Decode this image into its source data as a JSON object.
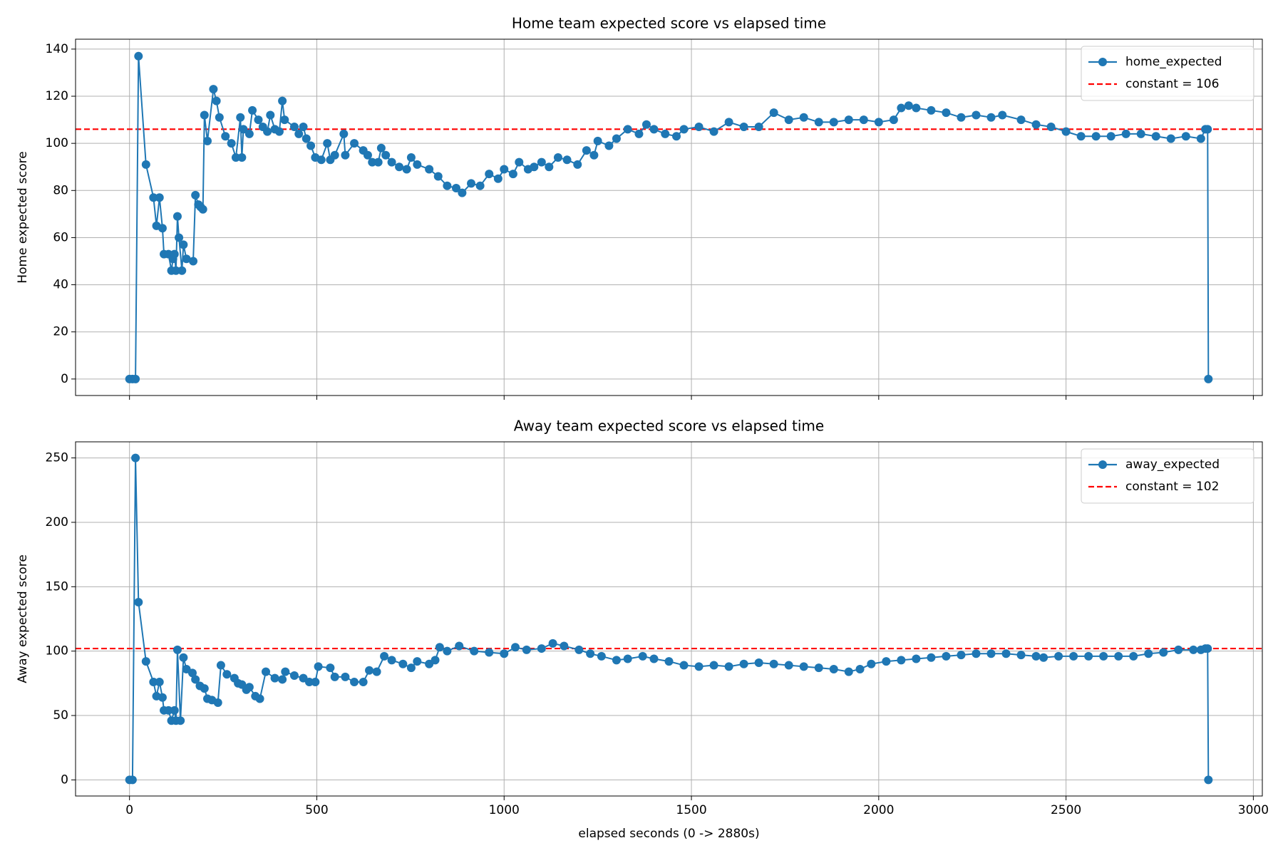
{
  "chart_data": [
    {
      "type": "line",
      "title": "Home team expected score vs elapsed time",
      "ylabel": "Home expected score",
      "xlim": [
        -144,
        3024
      ],
      "xticks": [
        0,
        500,
        1000,
        1500,
        2000,
        2500,
        3000
      ],
      "show_xtick_labels": false,
      "ylim": [
        -7,
        144.2
      ],
      "yticks": [
        0,
        20,
        40,
        60,
        80,
        100,
        120,
        140
      ],
      "grid": true,
      "legend": "upper right",
      "x": [
        0,
        8,
        16,
        24,
        44,
        64,
        72,
        80,
        88,
        92,
        104,
        112,
        116,
        120,
        124,
        128,
        132,
        140,
        144,
        152,
        170,
        176,
        184,
        190,
        196,
        200,
        208,
        224,
        232,
        240,
        256,
        272,
        284,
        296,
        300,
        304,
        320,
        328,
        344,
        356,
        368,
        376,
        388,
        400,
        408,
        414,
        440,
        452,
        464,
        472,
        484,
        496,
        512,
        528,
        536,
        548,
        572,
        576,
        600,
        624,
        636,
        648,
        664,
        672,
        684,
        700,
        720,
        740,
        752,
        768,
        800,
        824,
        848,
        872,
        888,
        912,
        936,
        960,
        984,
        1000,
        1024,
        1040,
        1064,
        1080,
        1100,
        1120,
        1144,
        1168,
        1196,
        1220,
        1240,
        1250,
        1280,
        1300,
        1330,
        1360,
        1380,
        1400,
        1430,
        1460,
        1480,
        1520,
        1560,
        1600,
        1640,
        1680,
        1720,
        1760,
        1800,
        1840,
        1880,
        1920,
        1960,
        2000,
        2040,
        2060,
        2080,
        2100,
        2140,
        2180,
        2220,
        2260,
        2300,
        2330,
        2380,
        2420,
        2460,
        2500,
        2540,
        2580,
        2620,
        2660,
        2700,
        2740,
        2780,
        2820,
        2860,
        2872,
        2878,
        2880
      ],
      "series": [
        {
          "name": "home_expected",
          "color": "#1f77b4",
          "values": [
            0,
            0,
            0,
            137,
            91,
            77,
            65,
            77,
            64,
            53,
            53,
            46,
            51,
            53,
            46,
            69,
            60,
            46,
            57,
            51,
            50,
            78,
            74,
            73,
            72,
            112,
            101,
            123,
            118,
            111,
            103,
            100,
            94,
            111,
            94,
            106,
            104,
            114,
            110,
            107,
            105,
            112,
            106,
            105,
            118,
            110,
            107,
            104,
            107,
            102,
            99,
            94,
            93,
            100,
            93,
            95,
            104,
            95,
            100,
            97,
            95,
            92,
            92,
            98,
            95,
            92,
            90,
            89,
            94,
            91,
            89,
            86,
            82,
            81,
            79,
            83,
            82,
            87,
            85,
            89,
            87,
            92,
            89,
            90,
            92,
            90,
            94,
            93,
            91,
            97,
            95,
            101,
            99,
            102,
            106,
            104,
            108,
            106,
            104,
            103,
            106,
            107,
            105,
            109,
            107,
            107,
            113,
            110,
            111,
            109,
            109,
            110,
            110,
            109,
            110,
            115,
            116,
            115,
            114,
            113,
            111,
            112,
            111,
            112,
            110,
            108,
            107,
            105,
            103,
            103,
            103,
            104,
            104,
            103,
            102,
            103,
            102,
            106,
            106,
            0
          ]
        }
      ],
      "hlines": [
        {
          "name": "constant = 106",
          "value": 106,
          "color": "#ff0000"
        }
      ]
    },
    {
      "type": "line",
      "title": "Away team expected score vs elapsed time",
      "ylabel": "Away expected score",
      "xlabel": "elapsed seconds (0 -> 2880s)",
      "xlim": [
        -144,
        3024
      ],
      "xticks": [
        0,
        500,
        1000,
        1500,
        2000,
        2500,
        3000
      ],
      "show_xtick_labels": true,
      "ylim": [
        -12.5,
        262.5
      ],
      "yticks": [
        0,
        50,
        100,
        150,
        200,
        250
      ],
      "grid": true,
      "legend": "upper right",
      "x": [
        0,
        8,
        16,
        24,
        44,
        64,
        72,
        80,
        88,
        92,
        104,
        112,
        120,
        124,
        128,
        136,
        144,
        152,
        168,
        176,
        188,
        200,
        208,
        220,
        236,
        244,
        260,
        280,
        290,
        300,
        312,
        320,
        336,
        348,
        364,
        388,
        408,
        416,
        440,
        464,
        480,
        496,
        504,
        536,
        548,
        576,
        600,
        624,
        640,
        660,
        680,
        700,
        730,
        752,
        768,
        800,
        816,
        828,
        848,
        880,
        920,
        960,
        1000,
        1030,
        1060,
        1100,
        1130,
        1160,
        1200,
        1230,
        1260,
        1300,
        1330,
        1370,
        1400,
        1440,
        1480,
        1520,
        1560,
        1600,
        1640,
        1680,
        1720,
        1760,
        1800,
        1840,
        1880,
        1920,
        1950,
        1980,
        2020,
        2060,
        2100,
        2140,
        2180,
        2220,
        2260,
        2300,
        2340,
        2380,
        2420,
        2440,
        2480,
        2520,
        2560,
        2600,
        2640,
        2680,
        2720,
        2760,
        2800,
        2840,
        2860,
        2872,
        2878,
        2880
      ],
      "series": [
        {
          "name": "away_expected",
          "color": "#1f77b4",
          "values": [
            0,
            0,
            250,
            138,
            92,
            76,
            65,
            76,
            64,
            54,
            54,
            46,
            54,
            46,
            101,
            46,
            95,
            86,
            83,
            78,
            73,
            71,
            63,
            62,
            60,
            89,
            82,
            79,
            75,
            74,
            70,
            72,
            65,
            63,
            84,
            79,
            78,
            84,
            81,
            79,
            76,
            76,
            88,
            87,
            80,
            80,
            76,
            76,
            85,
            84,
            96,
            93,
            90,
            87,
            92,
            90,
            93,
            103,
            100,
            104,
            100,
            99,
            98,
            103,
            101,
            102,
            106,
            104,
            101,
            98,
            96,
            93,
            94,
            96,
            94,
            92,
            89,
            88,
            89,
            88,
            90,
            91,
            90,
            89,
            88,
            87,
            86,
            84,
            86,
            90,
            92,
            93,
            94,
            95,
            96,
            97,
            98,
            98,
            98,
            97,
            96,
            95,
            96,
            96,
            96,
            96,
            96,
            96,
            98,
            99,
            101,
            101,
            101,
            102,
            102,
            0
          ]
        }
      ],
      "hlines": [
        {
          "name": "constant = 102",
          "value": 102,
          "color": "#ff0000"
        }
      ]
    }
  ]
}
